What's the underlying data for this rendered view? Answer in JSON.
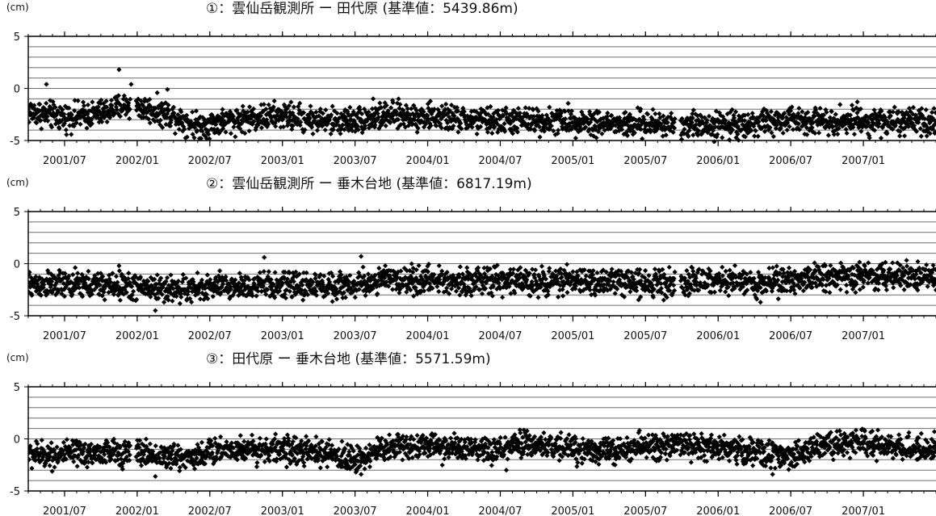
{
  "unit": "(cm)",
  "x_tick_labels": [
    "2001/07",
    "2002/01",
    "2002/07",
    "2003/01",
    "2003/07",
    "2004/01",
    "2004/07",
    "2005/01",
    "2005/07",
    "2006/01",
    "2006/07",
    "2007/01"
  ],
  "y_tick_labels": [
    "5",
    "0",
    "-5"
  ],
  "chart_data": [
    {
      "type": "scatter",
      "title": "①：雲仙岳観測所 ー 田代原 (基準値：5439.86m)",
      "ylabel": "(cm)",
      "ylim": [
        -5,
        5
      ],
      "xlim": [
        "2001/04",
        "2007/07"
      ],
      "grid": true,
      "series": [
        {
          "marker_color": "#000000",
          "anchors": [
            [
              "2001/04",
              -2.2
            ],
            [
              "2001/07",
              -2.8
            ],
            [
              "2001/10",
              -2.4
            ],
            [
              "2001/12",
              -1.6
            ],
            [
              "2002/01",
              -1.8
            ],
            [
              "2002/04",
              -2.6
            ],
            [
              "2002/06",
              -3.6
            ],
            [
              "2002/09",
              -3.0
            ],
            [
              "2003/01",
              -2.6
            ],
            [
              "2003/05",
              -3.2
            ],
            [
              "2003/07",
              -3.0
            ],
            [
              "2003/10",
              -2.6
            ],
            [
              "2004/01",
              -2.7
            ],
            [
              "2004/05",
              -3.1
            ],
            [
              "2004/08",
              -3.1
            ],
            [
              "2005/01",
              -3.1
            ],
            [
              "2005/05",
              -3.5
            ],
            [
              "2005/08",
              -3.4
            ],
            [
              "2006/01",
              -3.5
            ],
            [
              "2006/05",
              -3.3
            ],
            [
              "2006/08",
              -3.0
            ],
            [
              "2007/01",
              -3.1
            ],
            [
              "2007/07",
              -3.4
            ]
          ],
          "gaps": [
            [
              "2001/12",
              "2002/01"
            ],
            [
              "2005/09",
              "2005/10"
            ]
          ],
          "outliers": [
            [
              "2001/05",
              0.4
            ],
            [
              "2001/11",
              1.8
            ],
            [
              "2001/12",
              0.4
            ],
            [
              "2002/03",
              -0.1
            ],
            [
              "2003/08",
              -1.0
            ],
            [
              "2006/12",
              -1.3
            ]
          ]
        }
      ]
    },
    {
      "type": "scatter",
      "title": "②：雲仙岳観測所 ー 垂木台地 (基準値：6817.19m)",
      "ylabel": "(cm)",
      "ylim": [
        -5,
        5
      ],
      "xlim": [
        "2001/04",
        "2007/07"
      ],
      "grid": true,
      "series": [
        {
          "marker_color": "#000000",
          "anchors": [
            [
              "2001/04",
              -2.0
            ],
            [
              "2001/07",
              -2.0
            ],
            [
              "2001/11",
              -2.1
            ],
            [
              "2002/01",
              -2.2
            ],
            [
              "2002/05",
              -2.5
            ],
            [
              "2002/08",
              -2.2
            ],
            [
              "2003/01",
              -2.1
            ],
            [
              "2003/07",
              -2.1
            ],
            [
              "2003/09",
              -1.6
            ],
            [
              "2004/01",
              -1.6
            ],
            [
              "2004/07",
              -1.7
            ],
            [
              "2005/01",
              -1.7
            ],
            [
              "2005/07",
              -1.8
            ],
            [
              "2005/09",
              -1.7
            ],
            [
              "2006/01",
              -1.7
            ],
            [
              "2006/05",
              -1.8
            ],
            [
              "2006/09",
              -1.3
            ],
            [
              "2007/01",
              -1.2
            ],
            [
              "2007/07",
              -1.1
            ]
          ],
          "gaps": [
            [
              "2005/09",
              "2005/10"
            ]
          ],
          "outliers": [
            [
              "2001/11",
              -0.2
            ],
            [
              "2002/02",
              -4.5
            ],
            [
              "2002/11",
              0.6
            ],
            [
              "2003/07",
              0.7
            ],
            [
              "2003/09",
              -0.2
            ],
            [
              "2005/08",
              -3.5
            ],
            [
              "2006/04",
              -3.7
            ],
            [
              "2007/05",
              0.2
            ]
          ]
        }
      ]
    },
    {
      "type": "scatter",
      "title": "③：田代原 ー 垂木台地 (基準値：5571.59m)",
      "ylabel": "(cm)",
      "ylim": [
        -5,
        5
      ],
      "xlim": [
        "2001/04",
        "2007/07"
      ],
      "grid": true,
      "series": [
        {
          "marker_color": "#000000",
          "anchors": [
            [
              "2001/04",
              -1.5
            ],
            [
              "2001/07",
              -1.5
            ],
            [
              "2001/11",
              -1.3
            ],
            [
              "2001/12",
              -1.4
            ],
            [
              "2002/01",
              -1.3
            ],
            [
              "2002/04",
              -1.8
            ],
            [
              "2002/06",
              -1.6
            ],
            [
              "2002/08",
              -1.0
            ],
            [
              "2003/01",
              -1.0
            ],
            [
              "2003/05",
              -1.5
            ],
            [
              "2003/07",
              -2.0
            ],
            [
              "2003/10",
              -0.7
            ],
            [
              "2004/01",
              -0.6
            ],
            [
              "2004/06",
              -1.3
            ],
            [
              "2004/09",
              -0.5
            ],
            [
              "2005/01",
              -0.9
            ],
            [
              "2005/05",
              -1.2
            ],
            [
              "2005/08",
              -0.6
            ],
            [
              "2006/01",
              -0.8
            ],
            [
              "2006/05",
              -1.4
            ],
            [
              "2006/07",
              -1.8
            ],
            [
              "2006/09",
              -0.5
            ],
            [
              "2007/01",
              -0.5
            ],
            [
              "2007/07",
              -1.0
            ]
          ],
          "gaps": [
            [
              "2001/12",
              "2002/01"
            ]
          ],
          "outliers": [
            [
              "2002/02",
              -3.6
            ],
            [
              "2003/07",
              -3.4
            ],
            [
              "2004/07",
              -3.0
            ],
            [
              "2005/06",
              0.8
            ],
            [
              "2006/05",
              -3.4
            ],
            [
              "2006/11",
              0.0
            ]
          ]
        }
      ]
    }
  ]
}
